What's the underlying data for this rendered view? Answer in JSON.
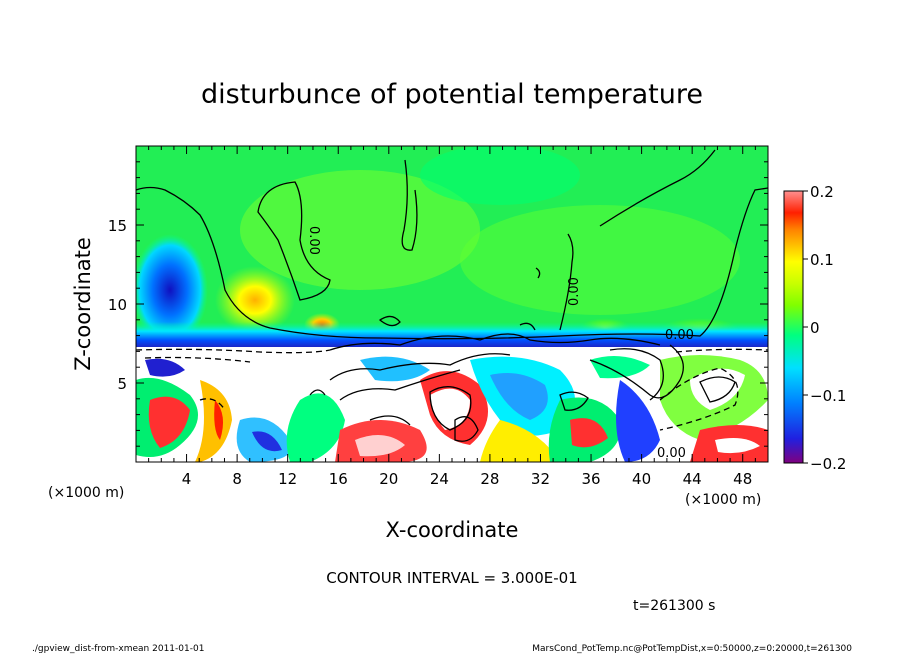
{
  "chart_data": {
    "type": "heatmap",
    "title": "disturbunce of potential temperature",
    "xlabel": "X-coordinate",
    "ylabel": "Z-coordinate",
    "x_unit_left": "(×1000 m)",
    "x_unit_right": "(×1000 m)",
    "xlim": [
      0,
      50
    ],
    "ylim": [
      0,
      20
    ],
    "x_ticks": [
      4,
      8,
      12,
      16,
      20,
      24,
      28,
      32,
      36,
      40,
      44,
      48
    ],
    "y_ticks": [
      5,
      10,
      15
    ],
    "colorbar": {
      "range": [
        -0.2,
        0.2
      ],
      "tick_values": [
        0.2,
        0.1,
        0,
        -0.1,
        -0.2
      ],
      "tick_labels": [
        "0.2",
        "0.1",
        "0",
        "−0.1",
        "−0.2"
      ],
      "colors": [
        "#7f007f",
        "#1a1aff",
        "#0080ff",
        "#00e0ff",
        "#00ff80",
        "#80ff00",
        "#c8ff00",
        "#ffff00",
        "#ffc000",
        "#ff8000",
        "#ff2000",
        "#ff8080"
      ]
    },
    "contour_label": "0.00",
    "contour_interval": "CONTOUR INTERVAL = 3.000E-01",
    "time_label": "t=261300 s"
  },
  "footer": {
    "left": "./gpview_dist-from-xmean  2011-01-01",
    "right": "MarsCond_PotTemp.nc@PotTempDist,x=0:50000,z=0:20000,t=261300"
  }
}
